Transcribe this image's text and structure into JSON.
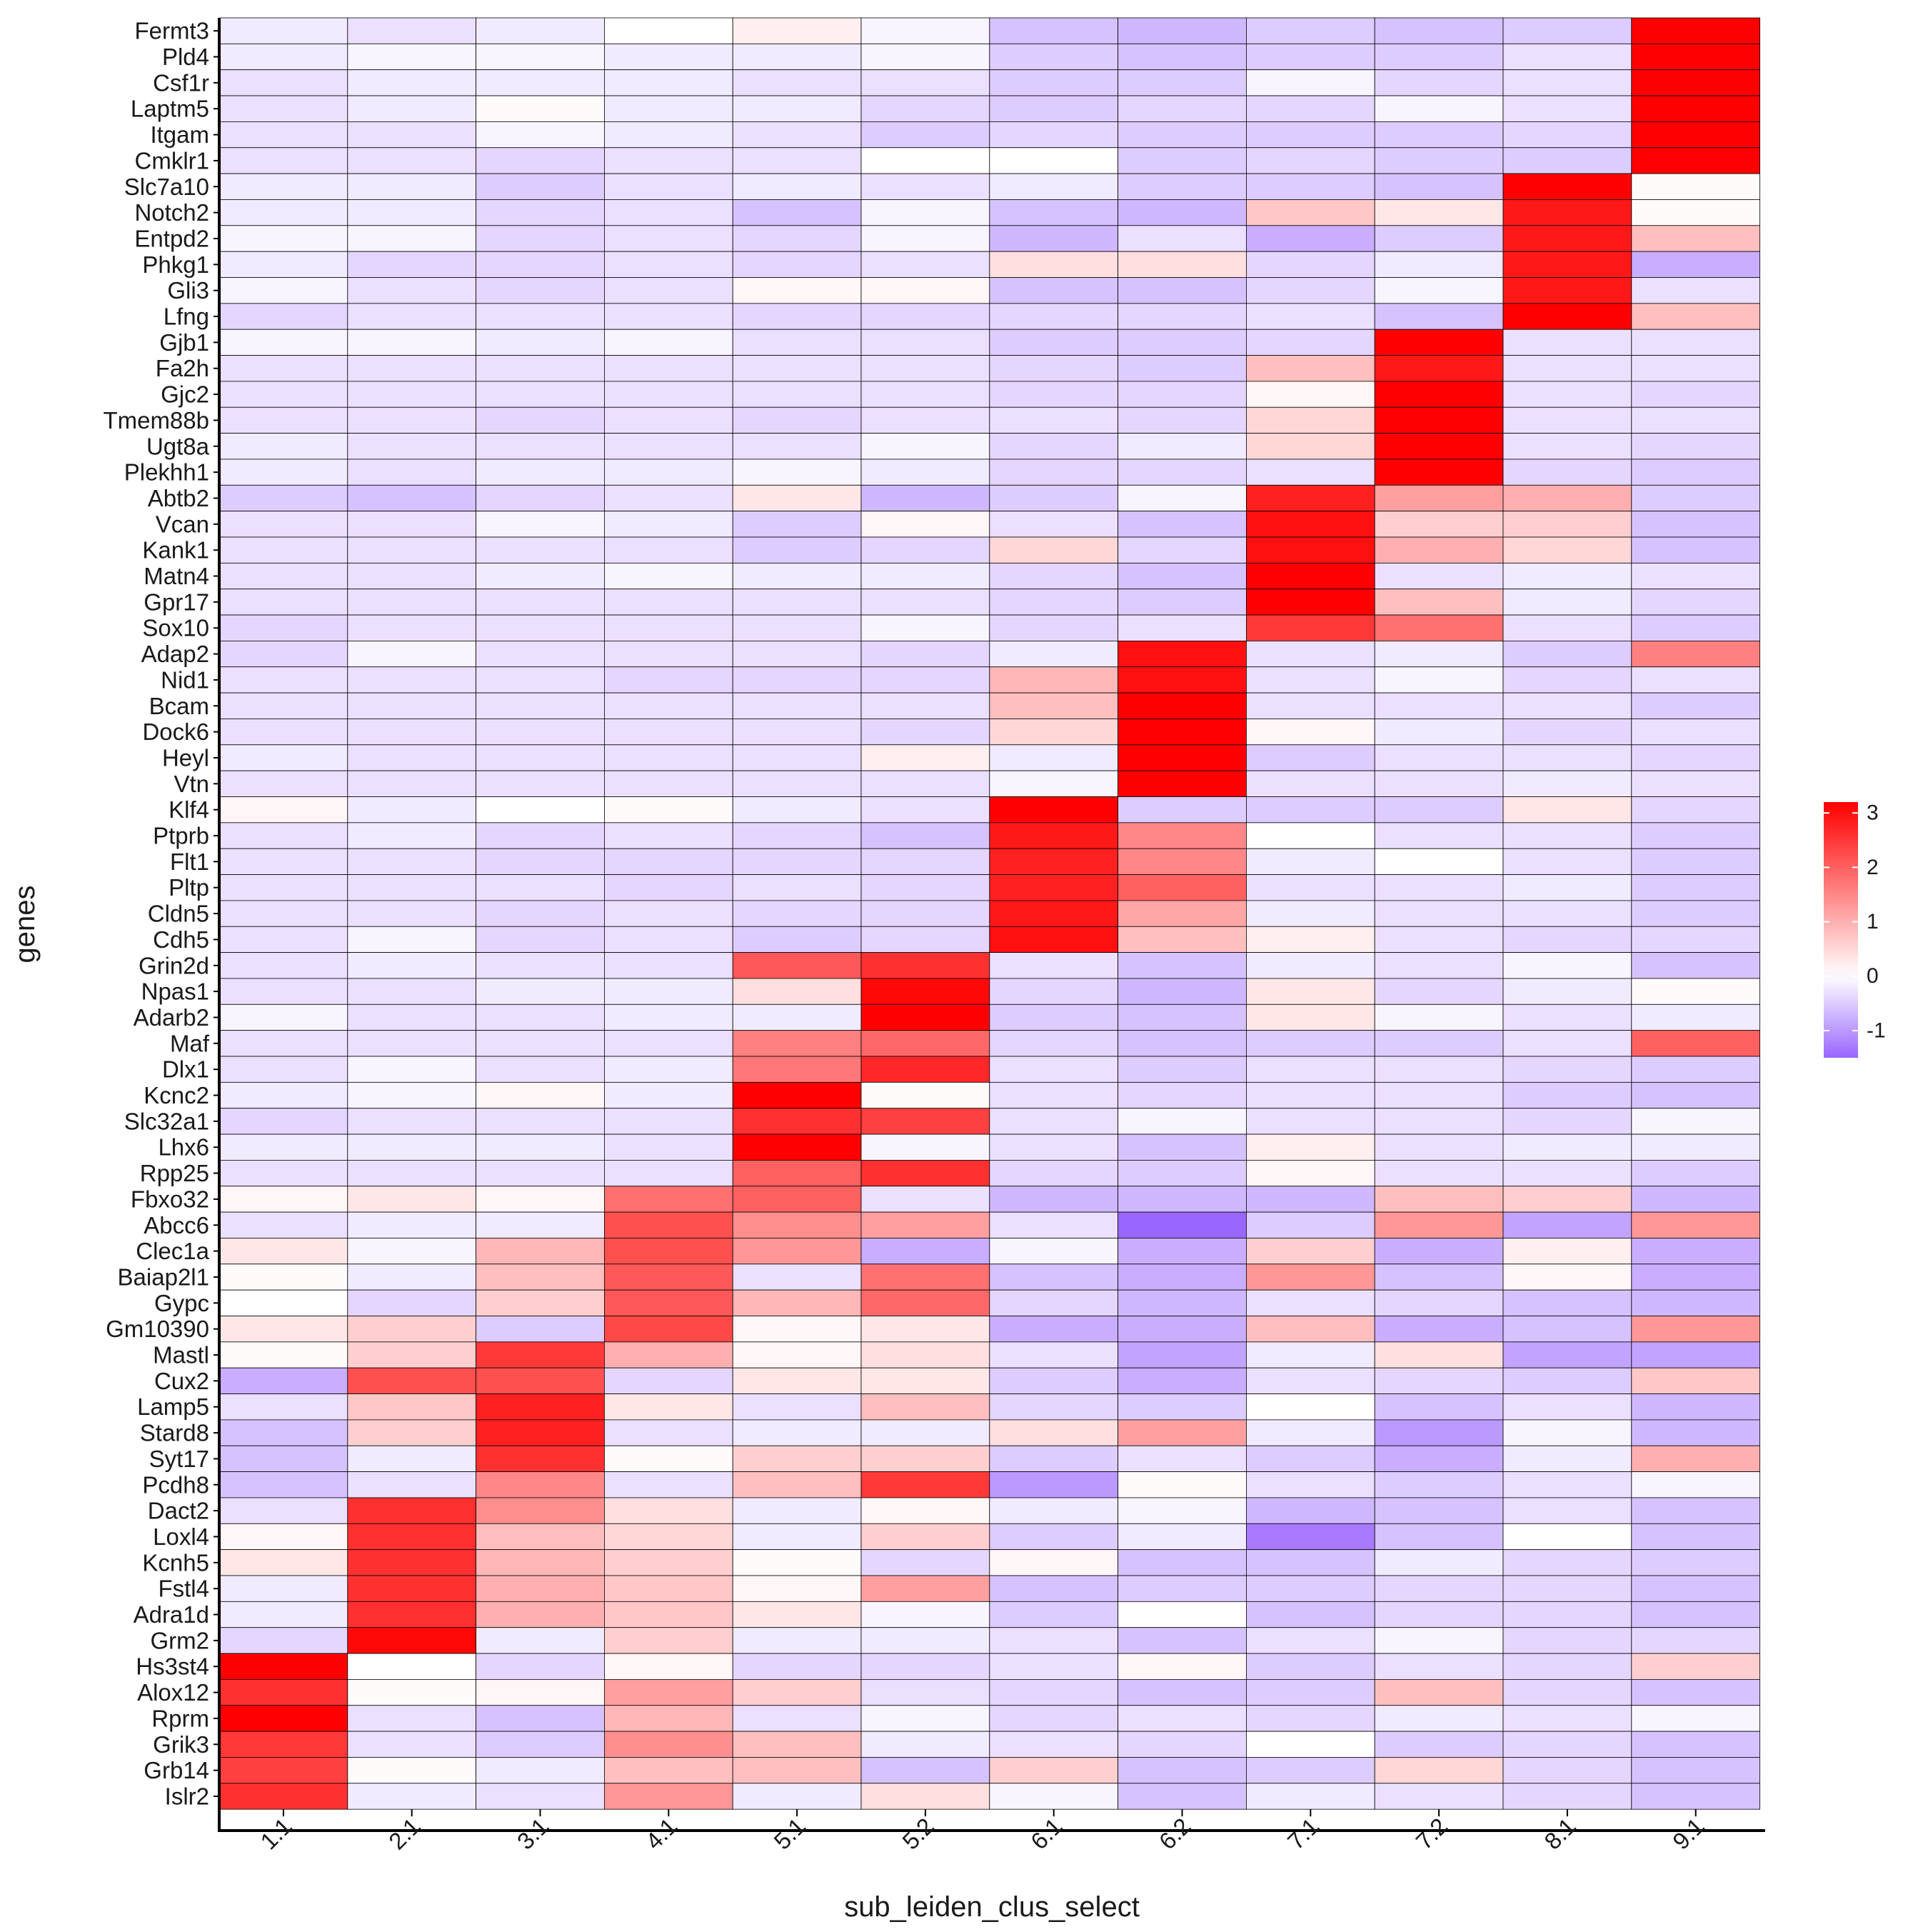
{
  "chart_data": {
    "type": "heatmap",
    "xlabel": "sub_leiden_clus_select",
    "ylabel": "genes",
    "x_categories": [
      "1.1",
      "2.1",
      "3.1",
      "4.1",
      "5.1",
      "5.2",
      "6.1",
      "6.2",
      "7.1",
      "7.2",
      "8.1",
      "9.1"
    ],
    "y_categories": [
      "Fermt3",
      "Pld4",
      "Csf1r",
      "Laptm5",
      "Itgam",
      "Cmklr1",
      "Slc7a10",
      "Notch2",
      "Entpd2",
      "Phkg1",
      "Gli3",
      "Lfng",
      "Gjb1",
      "Fa2h",
      "Gjc2",
      "Tmem88b",
      "Ugt8a",
      "Plekhh1",
      "Abtb2",
      "Vcan",
      "Kank1",
      "Matn4",
      "Gpr17",
      "Sox10",
      "Adap2",
      "Nid1",
      "Bcam",
      "Dock6",
      "Heyl",
      "Vtn",
      "Klf4",
      "Ptprb",
      "Flt1",
      "Pltp",
      "Cldn5",
      "Cdh5",
      "Grin2d",
      "Npas1",
      "Adarb2",
      "Maf",
      "Dlx1",
      "Kcnc2",
      "Slc32a1",
      "Lhx6",
      "Rpp25",
      "Fbxo32",
      "Abcc6",
      "Clec1a",
      "Baiap2l1",
      "Gypc",
      "Gm10390",
      "Mastl",
      "Cux2",
      "Lamp5",
      "Stard8",
      "Syt17",
      "Pcdh8",
      "Dact2",
      "Loxl4",
      "Kcnh5",
      "Fstl4",
      "Adra1d",
      "Grm2",
      "Hs3st4",
      "Alox12",
      "Rprm",
      "Grik3",
      "Grb14",
      "Islr2"
    ],
    "values": [
      [
        -0.2,
        -0.3,
        -0.2,
        0.0,
        0.2,
        -0.1,
        -0.6,
        -0.7,
        -0.5,
        -0.6,
        -0.5,
        3.2
      ],
      [
        -0.2,
        -0.1,
        -0.1,
        -0.2,
        -0.2,
        -0.1,
        -0.5,
        -0.6,
        -0.5,
        -0.5,
        -0.3,
        3.2
      ],
      [
        -0.3,
        -0.2,
        -0.2,
        -0.2,
        -0.3,
        -0.3,
        -0.5,
        -0.5,
        -0.1,
        -0.4,
        -0.3,
        3.2
      ],
      [
        -0.3,
        -0.2,
        0.05,
        -0.2,
        -0.2,
        -0.4,
        -0.5,
        -0.4,
        -0.4,
        -0.1,
        -0.3,
        3.2
      ],
      [
        -0.3,
        -0.3,
        -0.1,
        -0.2,
        -0.3,
        -0.5,
        -0.4,
        -0.5,
        -0.5,
        -0.5,
        -0.4,
        3.2
      ],
      [
        -0.3,
        -0.3,
        -0.4,
        -0.3,
        -0.3,
        0.0,
        0.0,
        -0.5,
        -0.4,
        -0.5,
        -0.5,
        3.2
      ],
      [
        -0.2,
        -0.2,
        -0.5,
        -0.3,
        -0.2,
        -0.3,
        -0.2,
        -0.5,
        -0.5,
        -0.6,
        3.2,
        0.05
      ],
      [
        -0.2,
        -0.2,
        -0.4,
        -0.3,
        -0.6,
        -0.1,
        -0.6,
        -0.7,
        0.7,
        0.3,
        2.9,
        0.05
      ],
      [
        -0.1,
        -0.1,
        -0.4,
        -0.3,
        -0.4,
        -0.1,
        -0.7,
        -0.3,
        -0.8,
        -0.5,
        2.9,
        0.8
      ],
      [
        -0.2,
        -0.4,
        -0.4,
        -0.3,
        -0.4,
        -0.3,
        0.4,
        0.4,
        -0.4,
        -0.2,
        2.9,
        -0.8
      ],
      [
        -0.1,
        -0.3,
        -0.4,
        -0.3,
        0.1,
        0.1,
        -0.6,
        -0.6,
        -0.4,
        -0.1,
        2.9,
        -0.3
      ],
      [
        -0.4,
        -0.3,
        -0.3,
        -0.3,
        -0.4,
        -0.4,
        -0.4,
        -0.4,
        -0.3,
        -0.6,
        3.2,
        0.8
      ],
      [
        -0.1,
        -0.1,
        -0.2,
        -0.1,
        -0.3,
        -0.3,
        -0.5,
        -0.5,
        -0.4,
        3.2,
        -0.3,
        -0.3
      ],
      [
        -0.3,
        -0.3,
        -0.3,
        -0.3,
        -0.3,
        -0.3,
        -0.4,
        -0.5,
        0.8,
        2.9,
        -0.3,
        -0.3
      ],
      [
        -0.3,
        -0.3,
        -0.3,
        -0.3,
        -0.3,
        -0.3,
        -0.4,
        -0.4,
        0.1,
        3.2,
        -0.3,
        -0.4
      ],
      [
        -0.3,
        -0.3,
        -0.4,
        -0.3,
        -0.4,
        -0.3,
        -0.3,
        -0.4,
        0.5,
        3.2,
        -0.3,
        -0.3
      ],
      [
        -0.2,
        -0.3,
        -0.3,
        -0.3,
        -0.3,
        -0.1,
        -0.4,
        -0.2,
        0.5,
        3.2,
        -0.3,
        -0.4
      ],
      [
        -0.2,
        -0.3,
        -0.2,
        -0.2,
        -0.1,
        -0.2,
        -0.4,
        -0.4,
        -0.3,
        3.2,
        -0.4,
        -0.5
      ],
      [
        -0.5,
        -0.6,
        -0.4,
        -0.3,
        0.3,
        -0.7,
        -0.5,
        -0.1,
        2.8,
        1.2,
        1.0,
        -0.5
      ],
      [
        -0.3,
        -0.3,
        -0.1,
        -0.2,
        -0.5,
        0.1,
        -0.3,
        -0.6,
        3.0,
        0.6,
        0.6,
        -0.6
      ],
      [
        -0.3,
        -0.3,
        -0.3,
        -0.3,
        -0.5,
        -0.4,
        0.5,
        -0.4,
        3.0,
        1.0,
        0.5,
        -0.6
      ],
      [
        -0.3,
        -0.3,
        -0.2,
        -0.1,
        -0.2,
        -0.2,
        -0.4,
        -0.6,
        3.2,
        -0.3,
        -0.2,
        -0.3
      ],
      [
        -0.3,
        -0.3,
        -0.3,
        -0.3,
        -0.3,
        -0.3,
        -0.4,
        -0.5,
        3.2,
        0.8,
        -0.2,
        -0.4
      ],
      [
        -0.4,
        -0.3,
        -0.3,
        -0.3,
        -0.3,
        -0.1,
        -0.4,
        -0.3,
        2.5,
        1.8,
        -0.3,
        -0.5
      ],
      [
        -0.4,
        -0.1,
        -0.3,
        -0.3,
        -0.3,
        -0.4,
        -0.2,
        3.0,
        -0.3,
        -0.2,
        -0.5,
        1.6
      ],
      [
        -0.3,
        -0.3,
        -0.3,
        -0.4,
        -0.4,
        -0.4,
        0.9,
        3.0,
        -0.3,
        -0.1,
        -0.4,
        -0.3
      ],
      [
        -0.3,
        -0.3,
        -0.3,
        -0.3,
        -0.3,
        -0.3,
        0.8,
        3.2,
        -0.3,
        -0.3,
        -0.3,
        -0.5
      ],
      [
        -0.3,
        -0.3,
        -0.3,
        -0.3,
        -0.3,
        -0.4,
        0.5,
        3.2,
        0.1,
        -0.2,
        -0.4,
        -0.3
      ],
      [
        -0.2,
        -0.3,
        -0.3,
        -0.3,
        -0.3,
        0.2,
        -0.2,
        3.2,
        -0.5,
        -0.3,
        -0.3,
        -0.4
      ],
      [
        -0.3,
        -0.3,
        -0.3,
        -0.3,
        -0.3,
        -0.3,
        -0.1,
        3.2,
        -0.3,
        -0.3,
        -0.2,
        -0.3
      ],
      [
        0.1,
        -0.2,
        0.0,
        0.05,
        -0.2,
        -0.3,
        3.2,
        -0.5,
        -0.5,
        -0.5,
        0.3,
        -0.4
      ],
      [
        -0.3,
        -0.2,
        -0.4,
        -0.3,
        -0.4,
        -0.6,
        2.9,
        1.5,
        0.0,
        -0.3,
        -0.3,
        -0.5
      ],
      [
        -0.3,
        -0.3,
        -0.4,
        -0.4,
        -0.4,
        -0.4,
        2.8,
        1.5,
        -0.2,
        0.0,
        -0.3,
        -0.5
      ],
      [
        -0.3,
        -0.3,
        -0.3,
        -0.4,
        -0.3,
        -0.4,
        2.8,
        2.0,
        -0.3,
        -0.3,
        -0.2,
        -0.5
      ],
      [
        -0.3,
        -0.3,
        -0.4,
        -0.3,
        -0.4,
        -0.4,
        2.9,
        1.1,
        -0.2,
        -0.3,
        -0.3,
        -0.5
      ],
      [
        -0.3,
        -0.1,
        -0.4,
        -0.3,
        -0.5,
        -0.4,
        3.0,
        0.8,
        0.2,
        -0.3,
        -0.4,
        -0.4
      ],
      [
        -0.3,
        -0.2,
        -0.3,
        -0.3,
        2.1,
        2.6,
        -0.3,
        -0.6,
        -0.2,
        -0.3,
        -0.1,
        -0.6
      ],
      [
        -0.3,
        -0.3,
        -0.2,
        -0.2,
        0.4,
        3.1,
        -0.4,
        -0.7,
        0.3,
        -0.4,
        -0.2,
        0.05
      ],
      [
        -0.1,
        -0.3,
        -0.3,
        -0.2,
        -0.2,
        3.2,
        -0.5,
        -0.6,
        0.3,
        -0.1,
        -0.3,
        -0.2
      ],
      [
        -0.3,
        -0.3,
        -0.3,
        -0.3,
        1.6,
        1.9,
        -0.4,
        -0.6,
        -0.5,
        -0.5,
        -0.3,
        2.0
      ],
      [
        -0.3,
        -0.1,
        -0.3,
        -0.2,
        1.7,
        2.7,
        -0.3,
        -0.5,
        -0.3,
        -0.3,
        -0.4,
        -0.5
      ],
      [
        -0.2,
        -0.1,
        0.1,
        -0.2,
        3.2,
        0.05,
        -0.3,
        -0.4,
        -0.3,
        -0.3,
        -0.5,
        -0.6
      ],
      [
        -0.4,
        -0.3,
        -0.3,
        -0.3,
        2.6,
        2.4,
        -0.3,
        -0.1,
        -0.3,
        -0.3,
        -0.4,
        -0.1
      ],
      [
        -0.2,
        -0.2,
        -0.2,
        -0.3,
        3.2,
        -0.1,
        -0.3,
        -0.6,
        0.2,
        -0.3,
        -0.2,
        -0.2
      ],
      [
        -0.3,
        -0.3,
        -0.3,
        -0.3,
        2.0,
        2.6,
        -0.4,
        -0.5,
        0.1,
        -0.3,
        -0.3,
        -0.5
      ],
      [
        0.1,
        0.3,
        0.1,
        1.8,
        2.0,
        -0.3,
        -0.7,
        -0.7,
        -0.7,
        0.8,
        0.6,
        -0.7
      ],
      [
        -0.3,
        -0.2,
        -0.2,
        2.2,
        1.4,
        1.2,
        -0.3,
        -1.5,
        -0.5,
        1.3,
        -0.9,
        1.3
      ],
      [
        0.3,
        -0.1,
        0.9,
        2.2,
        1.3,
        -0.8,
        -0.1,
        -0.8,
        0.6,
        -0.8,
        0.2,
        -0.8
      ],
      [
        0.05,
        -0.2,
        0.8,
        2.1,
        -0.3,
        1.8,
        -0.6,
        -0.8,
        1.3,
        -0.6,
        0.1,
        -0.8
      ],
      [
        0.0,
        -0.4,
        0.6,
        2.1,
        0.9,
        1.9,
        -0.4,
        -0.7,
        -0.3,
        -0.4,
        -0.6,
        -0.7
      ],
      [
        0.3,
        0.6,
        -0.5,
        2.3,
        0.1,
        0.3,
        -0.8,
        -0.8,
        0.8,
        -0.8,
        -0.6,
        1.3
      ],
      [
        0.05,
        0.6,
        2.5,
        1.0,
        0.1,
        0.4,
        -0.3,
        -0.9,
        -0.2,
        0.4,
        -0.9,
        -0.9
      ],
      [
        -0.8,
        2.2,
        2.2,
        -0.4,
        0.3,
        0.3,
        -0.5,
        -0.8,
        -0.3,
        -0.4,
        -0.5,
        0.7
      ],
      [
        -0.3,
        0.7,
        2.8,
        0.3,
        -0.3,
        0.8,
        -0.4,
        -0.5,
        0.0,
        -0.6,
        -0.3,
        -0.7
      ],
      [
        -0.6,
        0.6,
        2.8,
        -0.3,
        -0.2,
        -0.2,
        0.4,
        1.2,
        -0.2,
        -1.0,
        -0.1,
        -0.7
      ],
      [
        -0.6,
        -0.2,
        2.6,
        0.05,
        0.6,
        0.6,
        -0.5,
        -0.3,
        -0.5,
        -0.8,
        -0.2,
        1.0
      ],
      [
        -0.6,
        -0.3,
        1.5,
        -0.3,
        0.8,
        2.5,
        -1.0,
        0.05,
        -0.3,
        -0.5,
        -0.3,
        -0.1
      ],
      [
        -0.3,
        2.6,
        1.4,
        0.4,
        -0.2,
        0.1,
        -0.2,
        -0.1,
        -0.7,
        -0.6,
        -0.3,
        -0.6
      ],
      [
        0.1,
        2.6,
        0.8,
        0.5,
        -0.2,
        0.6,
        -0.5,
        -0.2,
        -1.3,
        -0.6,
        0.0,
        -0.6
      ],
      [
        0.3,
        2.6,
        0.9,
        0.6,
        0.05,
        -0.4,
        0.1,
        -0.6,
        -0.6,
        -0.2,
        -0.4,
        -0.5
      ],
      [
        -0.2,
        2.6,
        1.0,
        0.7,
        0.1,
        1.2,
        -0.6,
        -0.5,
        -0.5,
        -0.4,
        -0.4,
        -0.6
      ],
      [
        -0.2,
        2.6,
        1.0,
        0.7,
        0.3,
        -0.1,
        -0.5,
        0.0,
        -0.6,
        -0.4,
        -0.4,
        -0.6
      ],
      [
        -0.4,
        3.1,
        -0.2,
        0.6,
        -0.2,
        -0.2,
        -0.3,
        -0.6,
        -0.3,
        -0.1,
        -0.4,
        -0.4
      ],
      [
        3.2,
        0.0,
        -0.4,
        0.1,
        -0.4,
        -0.4,
        -0.3,
        0.1,
        -0.5,
        -0.3,
        -0.4,
        0.6
      ],
      [
        2.6,
        0.05,
        0.1,
        1.2,
        0.6,
        -0.3,
        -0.4,
        -0.6,
        -0.5,
        0.8,
        -0.4,
        -0.6
      ],
      [
        3.2,
        -0.3,
        -0.6,
        0.9,
        -0.3,
        -0.1,
        -0.4,
        -0.3,
        -0.4,
        -0.2,
        -0.3,
        -0.1
      ],
      [
        2.5,
        -0.3,
        -0.5,
        1.4,
        0.8,
        -0.2,
        -0.3,
        -0.4,
        0.0,
        -0.5,
        -0.4,
        -0.6
      ],
      [
        2.4,
        0.05,
        -0.2,
        0.8,
        0.8,
        -0.6,
        0.6,
        -0.6,
        -0.5,
        0.5,
        -0.4,
        -0.6
      ],
      [
        2.6,
        -0.2,
        -0.3,
        1.3,
        -0.2,
        0.4,
        -0.1,
        -0.6,
        -0.2,
        -0.3,
        -0.4,
        -0.6
      ]
    ],
    "color_scale": {
      "low": "#9966ff",
      "mid": "#ffffff",
      "high": "#ff0000",
      "min": -1.5,
      "mid_value": 0,
      "max": 3.2,
      "ticks": [
        -1,
        0,
        1,
        2,
        3
      ],
      "tick_labels": [
        "-1",
        "0",
        "1",
        "2",
        "3"
      ]
    },
    "legend_placement": "right",
    "grid": false
  }
}
